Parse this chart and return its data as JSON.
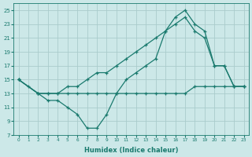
{
  "xlabel": "Humidex (Indice chaleur)",
  "bg_color": "#cce8e8",
  "grid_color": "#aacccc",
  "line_color": "#1a7a6e",
  "xlim": [
    -0.5,
    23.5
  ],
  "ylim": [
    7,
    26
  ],
  "xticks": [
    0,
    1,
    2,
    3,
    4,
    5,
    6,
    7,
    8,
    9,
    10,
    11,
    12,
    13,
    14,
    15,
    16,
    17,
    18,
    19,
    20,
    21,
    22,
    23
  ],
  "yticks": [
    7,
    9,
    11,
    13,
    15,
    17,
    19,
    21,
    23,
    25
  ],
  "line1_x": [
    0,
    1,
    2,
    3,
    4,
    5,
    6,
    7,
    8,
    9,
    10,
    11,
    12,
    13,
    14,
    15,
    16,
    17,
    18,
    19,
    20,
    21,
    22,
    23
  ],
  "line1_y": [
    15,
    14,
    13,
    13,
    13,
    13,
    13,
    13,
    13,
    13,
    13,
    13,
    13,
    13,
    13,
    13,
    13,
    13,
    14,
    14,
    14,
    14,
    14,
    14
  ],
  "line2_x": [
    0,
    2,
    3,
    4,
    5,
    6,
    7,
    8,
    9,
    10,
    11,
    12,
    13,
    14,
    15,
    16,
    17,
    18,
    19,
    20,
    21,
    22,
    23
  ],
  "line2_y": [
    15,
    13,
    12,
    12,
    11,
    10,
    8,
    8,
    10,
    13,
    15,
    16,
    17,
    18,
    22,
    24,
    25,
    23,
    22,
    17,
    17,
    14,
    14
  ],
  "line3_x": [
    0,
    2,
    3,
    4,
    5,
    6,
    7,
    8,
    9,
    10,
    11,
    12,
    13,
    14,
    15,
    16,
    17,
    18,
    19,
    20,
    21,
    22,
    23
  ],
  "line3_y": [
    15,
    13,
    13,
    13,
    14,
    14,
    15,
    16,
    16,
    17,
    18,
    19,
    20,
    21,
    22,
    23,
    24,
    22,
    21,
    17,
    17,
    14,
    14
  ]
}
